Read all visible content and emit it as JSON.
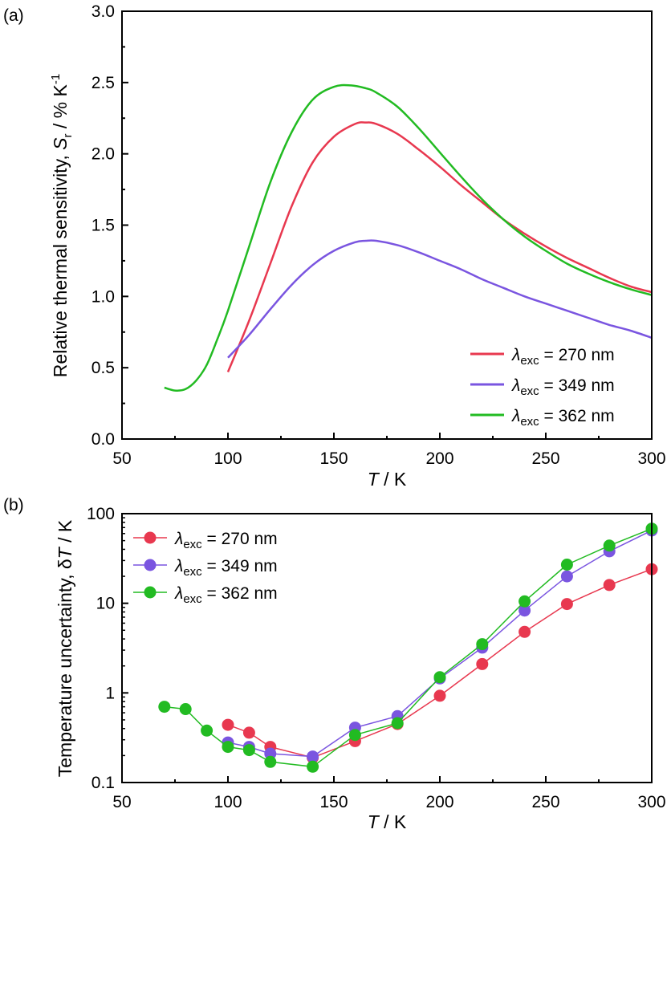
{
  "chart_data": [
    {
      "panel": "(a)",
      "type": "line",
      "xlabel_italic": "T",
      "xlabel_rest": " / K",
      "ylabel_text": "Relative thermal sensitivity, ",
      "ylabel_italic": "S",
      "ylabel_sub": "r",
      "ylabel_rest": " / % K",
      "ylabel_sup": "-1",
      "xlim": [
        50,
        300
      ],
      "ylim": [
        0,
        3.0
      ],
      "xticks": [
        "50",
        "100",
        "150",
        "200",
        "250",
        "300"
      ],
      "yticks": [
        "0.0",
        "0.5",
        "1.0",
        "1.5",
        "2.0",
        "2.5",
        "3.0"
      ],
      "legend_position": "bottom-right",
      "series": [
        {
          "name": "270 nm",
          "label_prefix": "λ",
          "label_sub": "exc",
          "label_rest": " = 270 nm",
          "color": "#e8384f",
          "x": [
            100,
            110,
            120,
            130,
            140,
            150,
            160,
            165,
            170,
            180,
            190,
            200,
            210,
            220,
            230,
            240,
            250,
            260,
            270,
            280,
            290,
            300
          ],
          "y": [
            0.47,
            0.83,
            1.23,
            1.63,
            1.94,
            2.12,
            2.21,
            2.22,
            2.21,
            2.14,
            2.03,
            1.91,
            1.78,
            1.66,
            1.54,
            1.44,
            1.35,
            1.27,
            1.2,
            1.13,
            1.07,
            1.03
          ]
        },
        {
          "name": "349 nm",
          "label_prefix": "λ",
          "label_sub": "exc",
          "label_rest": " = 349 nm",
          "color": "#7a55e0",
          "x": [
            100,
            110,
            120,
            130,
            140,
            150,
            160,
            165,
            170,
            180,
            190,
            200,
            210,
            220,
            230,
            240,
            250,
            260,
            270,
            280,
            290,
            300
          ],
          "y": [
            0.57,
            0.73,
            0.91,
            1.08,
            1.22,
            1.32,
            1.38,
            1.39,
            1.39,
            1.36,
            1.31,
            1.25,
            1.19,
            1.12,
            1.06,
            1.0,
            0.95,
            0.9,
            0.85,
            0.8,
            0.76,
            0.71
          ]
        },
        {
          "name": "362 nm",
          "label_prefix": "λ",
          "label_sub": "exc",
          "label_rest": " = 362 nm",
          "color": "#22bb22",
          "x": [
            70,
            75,
            80,
            85,
            90,
            95,
            100,
            110,
            120,
            130,
            140,
            150,
            158,
            165,
            170,
            180,
            190,
            200,
            210,
            220,
            230,
            240,
            250,
            260,
            270,
            280,
            290,
            300
          ],
          "y": [
            0.36,
            0.34,
            0.35,
            0.41,
            0.52,
            0.7,
            0.9,
            1.35,
            1.8,
            2.15,
            2.38,
            2.47,
            2.48,
            2.46,
            2.43,
            2.33,
            2.18,
            2.01,
            1.84,
            1.68,
            1.54,
            1.42,
            1.32,
            1.23,
            1.16,
            1.1,
            1.05,
            1.01
          ]
        }
      ]
    },
    {
      "panel": "(b)",
      "type": "line",
      "markers": true,
      "yscale": "log",
      "xlabel_italic": "T",
      "xlabel_rest": " / K",
      "ylabel_text": "Temperature uncertainty, δ",
      "ylabel_italic": "T",
      "ylabel_rest": " / K",
      "xlim": [
        50,
        300
      ],
      "ylim": [
        0.1,
        100
      ],
      "xticks": [
        "50",
        "100",
        "150",
        "200",
        "250",
        "300"
      ],
      "yticks": [
        "0.1",
        "1",
        "10",
        "100"
      ],
      "legend_position": "top-left",
      "series": [
        {
          "name": "270 nm",
          "label_prefix": "λ",
          "label_sub": "exc",
          "label_rest": " = 270 nm",
          "color": "#e8384f",
          "x": [
            100,
            110,
            120,
            140,
            160,
            180,
            200,
            220,
            240,
            260,
            280,
            300
          ],
          "y": [
            0.44,
            0.36,
            0.25,
            0.19,
            0.29,
            0.45,
            0.93,
            2.1,
            4.8,
            9.8,
            16,
            24
          ]
        },
        {
          "name": "349 nm",
          "label_prefix": "λ",
          "label_sub": "exc",
          "label_rest": " = 349 nm",
          "color": "#7a55e0",
          "x": [
            100,
            110,
            120,
            140,
            160,
            180,
            200,
            220,
            240,
            260,
            280,
            300
          ],
          "y": [
            0.28,
            0.25,
            0.21,
            0.195,
            0.41,
            0.55,
            1.45,
            3.2,
            8.3,
            20,
            38,
            65
          ]
        },
        {
          "name": "362 nm",
          "label_prefix": "λ",
          "label_sub": "exc",
          "label_rest": " = 362 nm",
          "color": "#22bb22",
          "x": [
            70,
            80,
            90,
            100,
            110,
            120,
            140,
            160,
            180,
            200,
            220,
            240,
            260,
            280,
            300
          ],
          "y": [
            0.7,
            0.66,
            0.38,
            0.25,
            0.23,
            0.17,
            0.15,
            0.34,
            0.46,
            1.5,
            3.5,
            10.5,
            27,
            44,
            68
          ]
        }
      ]
    }
  ]
}
